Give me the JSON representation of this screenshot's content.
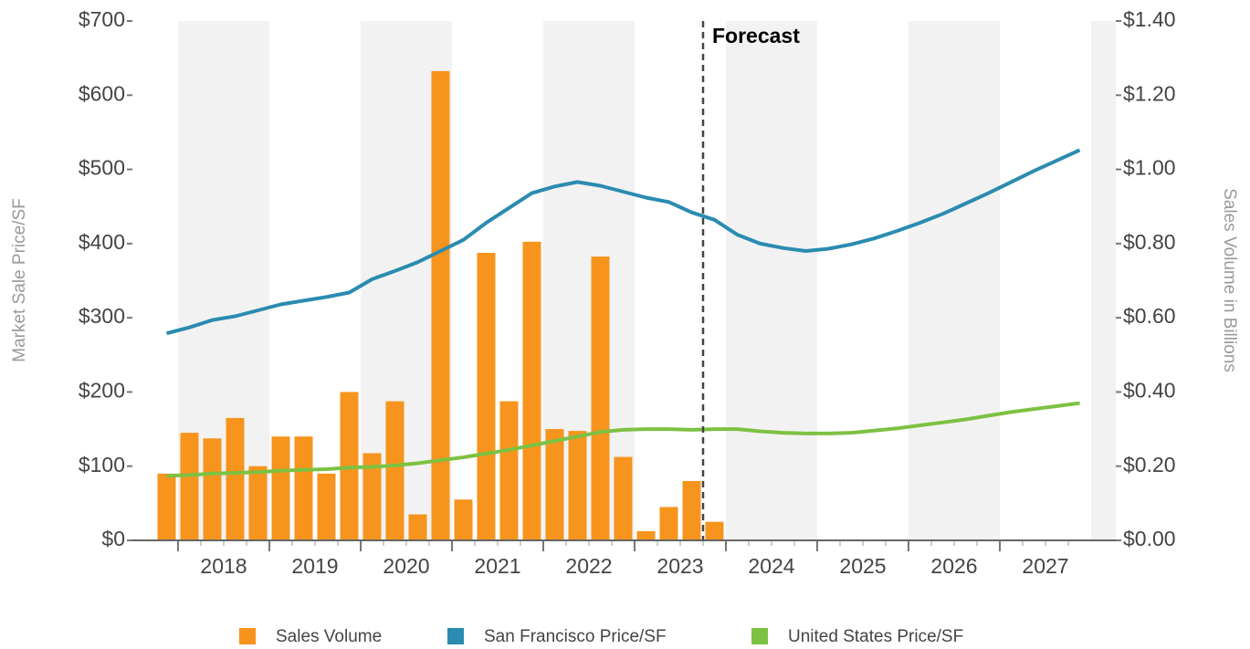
{
  "chart_data": {
    "type": "bar-line",
    "annotation": "Forecast",
    "forecast_x": 2023.75,
    "ylabel": "Market Sale Price/SF",
    "y2label": "Sales Volume in Billions",
    "xlim": [
      2017.5,
      2028.27
    ],
    "xticks": [
      {
        "value": 2018.5,
        "label": "2018"
      },
      {
        "value": 2019.5,
        "label": "2019"
      },
      {
        "value": 2020.5,
        "label": "2020"
      },
      {
        "value": 2021.5,
        "label": "2021"
      },
      {
        "value": 2022.5,
        "label": "2022"
      },
      {
        "value": 2023.5,
        "label": "2023"
      },
      {
        "value": 2024.5,
        "label": "2024"
      },
      {
        "value": 2025.5,
        "label": "2025"
      },
      {
        "value": 2026.5,
        "label": "2026"
      },
      {
        "value": 2027.5,
        "label": "2027"
      }
    ],
    "ylim": [
      0,
      700
    ],
    "yticks": [
      {
        "value": 0,
        "label": "$0"
      },
      {
        "value": 100,
        "label": "$100"
      },
      {
        "value": 200,
        "label": "$200"
      },
      {
        "value": 300,
        "label": "$300"
      },
      {
        "value": 400,
        "label": "$400"
      },
      {
        "value": 500,
        "label": "$500"
      },
      {
        "value": 600,
        "label": "$600"
      },
      {
        "value": 700,
        "label": "$700"
      }
    ],
    "y2lim": [
      0,
      1.4
    ],
    "y2ticks": [
      {
        "value": 0,
        "label": "$0.00"
      },
      {
        "value": 0.2,
        "label": "$0.20"
      },
      {
        "value": 0.4,
        "label": "$0.40"
      },
      {
        "value": 0.6,
        "label": "$0.60"
      },
      {
        "value": 0.8,
        "label": "$0.80"
      },
      {
        "value": 1.0,
        "label": "$1.00"
      },
      {
        "value": 1.2,
        "label": "$1.20"
      },
      {
        "value": 1.4,
        "label": "$1.40"
      }
    ],
    "x": [
      2017.875,
      2018.125,
      2018.375,
      2018.625,
      2018.875,
      2019.125,
      2019.375,
      2019.625,
      2019.875,
      2020.125,
      2020.375,
      2020.625,
      2020.875,
      2021.125,
      2021.375,
      2021.625,
      2021.875,
      2022.125,
      2022.375,
      2022.625,
      2022.875,
      2023.125,
      2023.375,
      2023.625,
      2023.875,
      2024.125,
      2024.375,
      2024.625,
      2024.875,
      2025.125,
      2025.375,
      2025.625,
      2025.875,
      2026.125,
      2026.375,
      2026.625,
      2026.875,
      2027.125,
      2027.375,
      2027.625,
      2027.875
    ],
    "series": [
      {
        "name": "Sales Volume",
        "color": "#f7941d",
        "kind": "bar",
        "axis": "y2",
        "values": [
          0.18,
          0.29,
          0.275,
          0.33,
          0.2,
          0.28,
          0.28,
          0.18,
          0.4,
          0.235,
          0.375,
          0.07,
          1.265,
          0.11,
          0.775,
          0.375,
          0.805,
          0.3,
          0.295,
          0.765,
          0.225,
          0.025,
          0.09,
          0.16,
          0.05,
          null,
          null,
          null,
          null,
          null,
          null,
          null,
          null,
          null,
          null,
          null,
          null,
          null,
          null,
          null,
          null
        ]
      },
      {
        "name": "San Francisco Price/SF",
        "color": "#2b8bb0",
        "kind": "line",
        "values": [
          279,
          287,
          297,
          302,
          310,
          318,
          323,
          328,
          334,
          352,
          363,
          375,
          390,
          405,
          428,
          448,
          468,
          477,
          483,
          478,
          470,
          462,
          456,
          442,
          432,
          412,
          400,
          394,
          390,
          393,
          399,
          407,
          417,
          428,
          440,
          454,
          468,
          483,
          498,
          512,
          526
        ]
      },
      {
        "name": "United States Price/SF",
        "color": "#7dc142",
        "kind": "line",
        "values": [
          87,
          88,
          90,
          91,
          92,
          94,
          95,
          96,
          98,
          99,
          101,
          104,
          108,
          112,
          117,
          122,
          128,
          134,
          140,
          146,
          149,
          150,
          150,
          149,
          150,
          150,
          147,
          145,
          144,
          144,
          145,
          148,
          151,
          155,
          159,
          163,
          168,
          173,
          177,
          181,
          185
        ]
      }
    ]
  }
}
